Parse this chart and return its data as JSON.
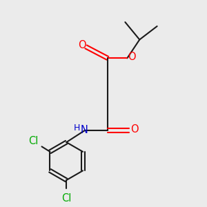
{
  "bg_color": "#ebebeb",
  "bond_color": "#1a1a1a",
  "o_color": "#ff0000",
  "n_color": "#0000cc",
  "cl_color": "#00aa00",
  "line_width": 1.5,
  "font_size": 10.5,
  "fig_size": [
    3.0,
    3.0
  ],
  "dpi": 100,
  "xlim": [
    0,
    10
  ],
  "ylim": [
    0,
    10
  ]
}
